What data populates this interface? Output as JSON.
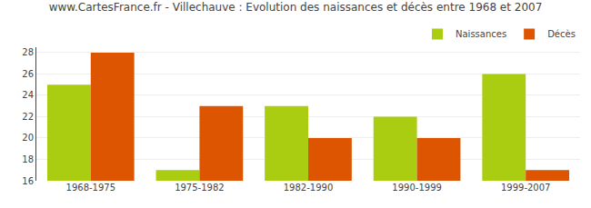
{
  "chart_data": {
    "type": "bar",
    "title": "www.CartesFrance.fr - Villechauve : Evolution des naissances et décès entre 1968 et 2007",
    "categories": [
      "1968-1975",
      "1975-1982",
      "1982-1990",
      "1990-1999",
      "1999-2007"
    ],
    "series": [
      {
        "name": "Naissances",
        "color": "#aacc11",
        "values": [
          25,
          17,
          23,
          22,
          26
        ]
      },
      {
        "name": "Décès",
        "color": "#dd5500",
        "values": [
          28,
          23,
          20,
          20,
          17
        ]
      }
    ],
    "ylim": [
      16,
      28.5
    ],
    "yticks": [
      16,
      18,
      20,
      22,
      24,
      26,
      28
    ],
    "grid": true,
    "legend": "upper right"
  }
}
